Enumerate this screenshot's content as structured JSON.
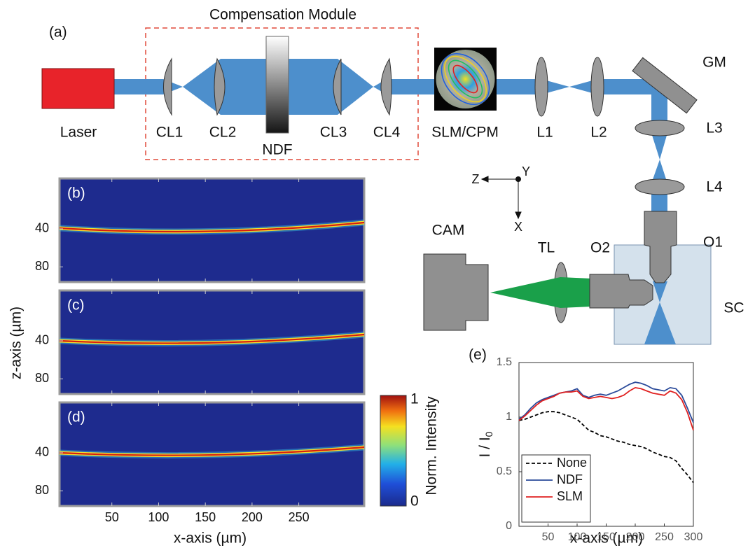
{
  "diagram": {
    "panel_label": "(a)",
    "module_label": "Compensation Module",
    "laser": "Laser",
    "cl1": "CL1",
    "cl2": "CL2",
    "ndf": "NDF",
    "cl3": "CL3",
    "cl4": "CL4",
    "slm": "SLM/CPM",
    "l1": "L1",
    "l2": "L2",
    "gm": "GM",
    "l3": "L3",
    "l4": "L4",
    "o1": "O1",
    "o2": "O2",
    "tl": "TL",
    "cam": "CAM",
    "sc": "SC",
    "axis_z": "Z",
    "axis_y": "Y",
    "axis_x": "X"
  },
  "panels": {
    "labels": [
      "(b)",
      "(c)",
      "(d)"
    ],
    "xlabel": "x-axis (µm)",
    "ylabel": "z-axis (µm)",
    "xlim": [
      -6,
      320
    ],
    "ylim": [
      -13,
      96
    ],
    "y_reversed": true,
    "xticks": [
      50,
      100,
      150,
      200,
      250
    ],
    "yticks": [
      40,
      80
    ]
  },
  "colorbar": {
    "label": "Norm. Intensity",
    "lim": [
      0,
      1
    ],
    "ticks": [
      0,
      1
    ]
  },
  "chart_data": {
    "type": "line",
    "panel_label": "(e)",
    "xlabel": "x-axis (µm)",
    "ylabel": [
      "I / I",
      "0"
    ],
    "x": [
      0,
      10,
      20,
      30,
      40,
      50,
      60,
      70,
      80,
      90,
      100,
      110,
      120,
      130,
      140,
      150,
      160,
      170,
      180,
      190,
      200,
      210,
      220,
      230,
      240,
      250,
      260,
      270,
      280,
      290,
      300
    ],
    "series": [
      {
        "name": "None",
        "color": "#000000",
        "style": "dashed",
        "values": [
          0.97,
          0.98,
          1.0,
          1.02,
          1.04,
          1.05,
          1.05,
          1.04,
          1.02,
          1.0,
          0.98,
          0.93,
          0.88,
          0.86,
          0.83,
          0.82,
          0.8,
          0.78,
          0.77,
          0.75,
          0.74,
          0.73,
          0.71,
          0.68,
          0.66,
          0.64,
          0.63,
          0.6,
          0.53,
          0.47,
          0.4
        ]
      },
      {
        "name": "NDF",
        "color": "#2a4a9a",
        "style": "solid",
        "values": [
          0.98,
          1.02,
          1.08,
          1.13,
          1.16,
          1.18,
          1.2,
          1.22,
          1.23,
          1.24,
          1.26,
          1.2,
          1.18,
          1.2,
          1.21,
          1.2,
          1.22,
          1.24,
          1.27,
          1.3,
          1.32,
          1.31,
          1.29,
          1.26,
          1.25,
          1.24,
          1.27,
          1.26,
          1.2,
          1.08,
          0.95
        ]
      },
      {
        "name": "SLM",
        "color": "#e02020",
        "style": "solid",
        "values": [
          0.97,
          1.01,
          1.06,
          1.11,
          1.15,
          1.17,
          1.19,
          1.22,
          1.23,
          1.23,
          1.24,
          1.19,
          1.17,
          1.18,
          1.19,
          1.18,
          1.17,
          1.18,
          1.2,
          1.24,
          1.27,
          1.26,
          1.24,
          1.22,
          1.21,
          1.2,
          1.24,
          1.22,
          1.16,
          1.04,
          0.88
        ]
      }
    ],
    "xlim": [
      0,
      300
    ],
    "ylim": [
      0,
      1.5
    ],
    "xticks": [
      50,
      100,
      150,
      200,
      250,
      300
    ],
    "yticks": [
      0,
      0.5,
      1,
      1.5
    ],
    "legend": "lower left"
  }
}
